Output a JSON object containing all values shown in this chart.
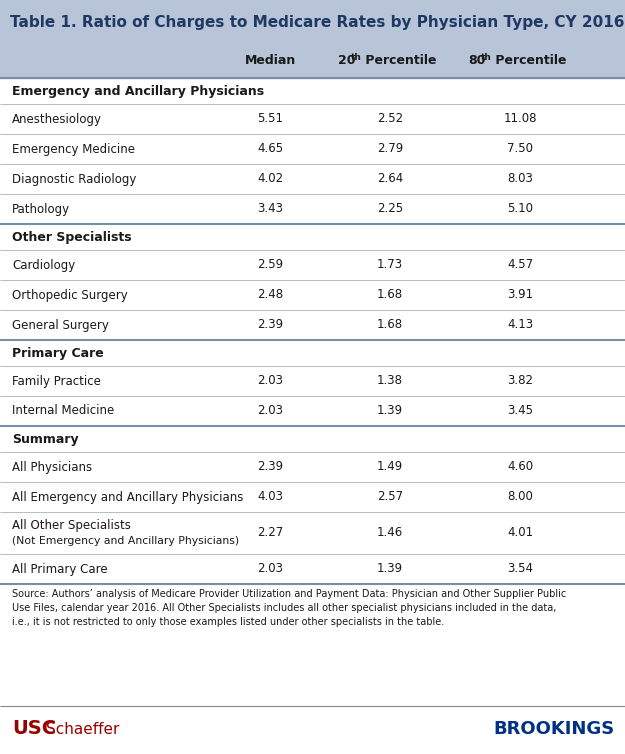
{
  "title": "Table 1. Ratio of Charges to Medicare Rates by Physician Type, CY 2016",
  "title_color": "#1F3864",
  "header_bg": "#B8C4D8",
  "sections": [
    {
      "section_title": "Emergency and Ancillary Physicians",
      "rows": [
        {
          "label": "Anesthesiology",
          "median": "5.51",
          "p20": "2.52",
          "p80": "11.08"
        },
        {
          "label": "Emergency Medicine",
          "median": "4.65",
          "p20": "2.79",
          "p80": "7.50"
        },
        {
          "label": "Diagnostic Radiology",
          "median": "4.02",
          "p20": "2.64",
          "p80": "8.03"
        },
        {
          "label": "Pathology",
          "median": "3.43",
          "p20": "2.25",
          "p80": "5.10"
        }
      ]
    },
    {
      "section_title": "Other Specialists",
      "rows": [
        {
          "label": "Cardiology",
          "median": "2.59",
          "p20": "1.73",
          "p80": "4.57"
        },
        {
          "label": "Orthopedic Surgery",
          "median": "2.48",
          "p20": "1.68",
          "p80": "3.91"
        },
        {
          "label": "General Surgery",
          "median": "2.39",
          "p20": "1.68",
          "p80": "4.13"
        }
      ]
    },
    {
      "section_title": "Primary Care",
      "rows": [
        {
          "label": "Family Practice",
          "median": "2.03",
          "p20": "1.38",
          "p80": "3.82"
        },
        {
          "label": "Internal Medicine",
          "median": "2.03",
          "p20": "1.39",
          "p80": "3.45"
        }
      ]
    },
    {
      "section_title": "Summary",
      "rows": [
        {
          "label": "All Physicians",
          "median": "2.39",
          "p20": "1.49",
          "p80": "4.60"
        },
        {
          "label": "All Emergency and Ancillary Physicians",
          "median": "4.03",
          "p20": "2.57",
          "p80": "8.00"
        },
        {
          "label": "All Other Specialists\n(Not Emergency and Ancillary Physicians)",
          "median": "2.27",
          "p20": "1.46",
          "p80": "4.01"
        },
        {
          "label": "All Primary Care",
          "median": "2.03",
          "p20": "1.39",
          "p80": "3.54"
        }
      ]
    }
  ],
  "source_text": "Source: Authors’ analysis of Medicare Provider Utilization and Payment Data: Physician and Other Supplier Public\nUse Files, calendar year 2016. All Other Specialists includes all other specialist physicians included in the data,\ni.e., it is not restricted to only those examples listed under other specialists in the table.",
  "usc_color": "#990000",
  "brookings_color": "#003087",
  "bg_color": "#F5F5F0",
  "table_bg": "#FFFFFF",
  "thick_line_color": "#7A8FA6",
  "thin_line_color": "#B0BEC8",
  "text_color": "#1a1a1a"
}
